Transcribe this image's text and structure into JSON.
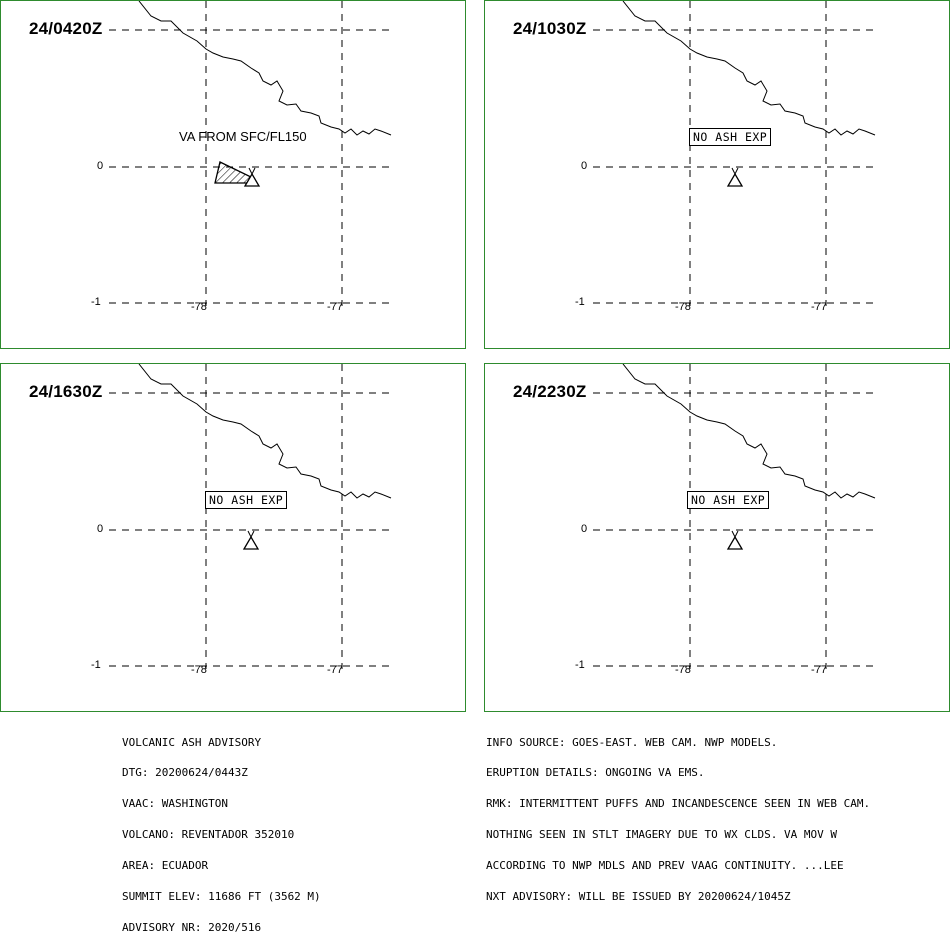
{
  "panels": [
    {
      "time": "24/0420Z",
      "label": "VA FROM SFC/FL150",
      "label_style": "plain",
      "has_polygon": true,
      "lat_ticks": [
        "0",
        "-1"
      ],
      "lon_ticks": [
        "-78",
        "-77"
      ]
    },
    {
      "time": "24/1030Z",
      "label": "NO ASH EXP",
      "label_style": "boxed",
      "has_polygon": false,
      "lat_ticks": [
        "0",
        "-1"
      ],
      "lon_ticks": [
        "-78",
        "-77"
      ]
    },
    {
      "time": "24/1630Z",
      "label": "NO ASH EXP",
      "label_style": "boxed",
      "has_polygon": false,
      "lat_ticks": [
        "0",
        "-1"
      ],
      "lon_ticks": [
        "-78",
        "-77"
      ]
    },
    {
      "time": "24/2230Z",
      "label": "NO ASH EXP",
      "label_style": "boxed",
      "has_polygon": false,
      "lat_ticks": [
        "0",
        "-1"
      ],
      "lon_ticks": [
        "-78",
        "-77"
      ]
    }
  ],
  "advisory_left": [
    "VOLCANIC ASH ADVISORY",
    "DTG: 20200624/0443Z",
    "VAAC: WASHINGTON",
    "VOLCANO: REVENTADOR 352010",
    "AREA: ECUADOR",
    "SUMMIT ELEV: 11686 FT (3562 M)",
    "ADVISORY NR: 2020/516"
  ],
  "advisory_right": [
    "INFO SOURCE: GOES-EAST. WEB CAM. NWP MODELS.",
    "ERUPTION DETAILS: ONGOING VA EMS.",
    "RMK: INTERMITTENT PUFFS AND INCANDESCENCE SEEN IN WEB CAM.",
    "NOTHING SEEN IN STLT IMAGERY DUE TO WX CLDS. VA MOV W",
    "ACCORDING TO NWP MDLS AND PREV VAAG CONTINUITY. ...LEE",
    "NXT ADVISORY: WILL BE ISSUED BY 20200624/1045Z"
  ],
  "colors": {
    "frame": "#2e8b2e",
    "ink": "#000000"
  }
}
